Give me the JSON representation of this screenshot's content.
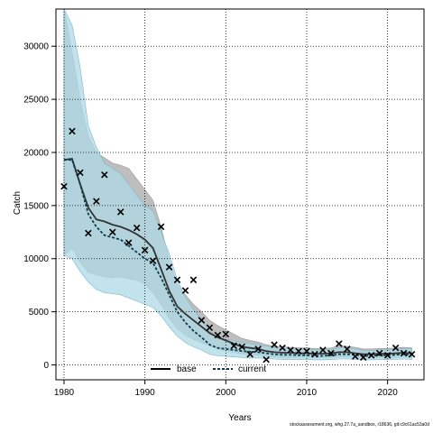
{
  "chart_data": {
    "type": "line",
    "xlabel": "Years",
    "ylabel": "Catch",
    "xlim": [
      1979,
      2024.5
    ],
    "ylim": [
      -1400,
      33500
    ],
    "x_ticks": [
      1980,
      1990,
      2000,
      2010,
      2020
    ],
    "y_ticks": [
      0,
      5000,
      10000,
      15000,
      20000,
      25000,
      30000
    ],
    "grid": true,
    "legend_position": "bottom-center",
    "colors": {
      "base_line": "#333333",
      "base_band": "#b3b3b3",
      "current_line": "#0b3d4f",
      "current_band": "#add8e6"
    },
    "years": [
      1980,
      1981,
      1982,
      1983,
      1984,
      1985,
      1986,
      1987,
      1988,
      1989,
      1990,
      1991,
      1992,
      1993,
      1994,
      1995,
      1996,
      1997,
      1998,
      1999,
      2000,
      2001,
      2002,
      2003,
      2004,
      2005,
      2006,
      2007,
      2008,
      2009,
      2010,
      2011,
      2012,
      2013,
      2014,
      2015,
      2016,
      2017,
      2018,
      2019,
      2020,
      2021,
      2022,
      2023
    ],
    "series": [
      {
        "name": "base",
        "style": "solid",
        "values": [
          19300,
          19400,
          17000,
          14800,
          13700,
          13500,
          13200,
          13000,
          12700,
          12300,
          11800,
          11000,
          9000,
          7000,
          5500,
          4800,
          4200,
          3600,
          3000,
          2600,
          2300,
          2000,
          1700,
          1600,
          1500,
          1300,
          1200,
          1150,
          1150,
          1100,
          1100,
          1050,
          1050,
          1100,
          1200,
          1200,
          1100,
          1000,
          1000,
          1050,
          1050,
          1100,
          1150,
          1100
        ],
        "lower": [
          10300,
          11000,
          9700,
          8700,
          8500,
          8300,
          8200,
          8300,
          8100,
          8000,
          7600,
          6800,
          5700,
          4400,
          3400,
          2800,
          2400,
          2100,
          1800,
          1500,
          1300,
          1200,
          1000,
          950,
          900,
          800,
          750,
          700,
          700,
          700,
          700,
          700,
          700,
          700,
          750,
          750,
          700,
          650,
          650,
          700,
          700,
          700,
          750,
          700
        ],
        "upper": [
          33500,
          29500,
          25000,
          21500,
          20000,
          19500,
          19000,
          18800,
          18500,
          17500,
          16500,
          15500,
          13000,
          9800,
          7600,
          6600,
          5700,
          5000,
          4200,
          3700,
          3300,
          2900,
          2500,
          2300,
          2150,
          1900,
          1750,
          1700,
          1650,
          1600,
          1600,
          1550,
          1550,
          1600,
          1800,
          1750,
          1650,
          1500,
          1500,
          1550,
          1550,
          1600,
          1650,
          1600
        ]
      },
      {
        "name": "current",
        "style": "dashed",
        "values": [
          19300,
          19300,
          17000,
          14200,
          13000,
          12200,
          12000,
          11800,
          11200,
          10600,
          10000,
          9600,
          8200,
          6600,
          5000,
          4000,
          3200,
          2600,
          1900,
          1600,
          1500,
          1400,
          1300,
          1250,
          1200,
          1100,
          1000,
          950,
          950,
          900,
          900,
          850,
          850,
          900,
          1000,
          1000,
          950,
          850,
          850,
          900,
          900,
          950,
          1000,
          950
        ],
        "lower": [
          10300,
          10000,
          8800,
          7800,
          7100,
          6800,
          6700,
          6600,
          6300,
          6000,
          5700,
          5400,
          4600,
          3600,
          2700,
          2100,
          1700,
          1400,
          1000,
          850,
          800,
          750,
          700,
          650,
          650,
          600,
          550,
          500,
          500,
          500,
          500,
          480,
          480,
          500,
          550,
          550,
          520,
          470,
          470,
          500,
          500,
          520,
          550,
          520
        ],
        "upper": [
          33500,
          32000,
          28000,
          22500,
          20500,
          19000,
          18500,
          18000,
          17000,
          16000,
          15000,
          14500,
          12500,
          10500,
          8000,
          6400,
          5200,
          4200,
          3100,
          2600,
          2400,
          2300,
          2100,
          2000,
          1900,
          1750,
          1600,
          1550,
          1500,
          1450,
          1450,
          1400,
          1400,
          1450,
          1600,
          1600,
          1500,
          1350,
          1350,
          1400,
          1400,
          1500,
          1550,
          1500
        ]
      }
    ],
    "observed_catch": [
      {
        "x": 1980,
        "y": 16800
      },
      {
        "x": 1981,
        "y": 22000
      },
      {
        "x": 1982,
        "y": 18100
      },
      {
        "x": 1983,
        "y": 12400
      },
      {
        "x": 1984,
        "y": 15400
      },
      {
        "x": 1985,
        "y": 17900
      },
      {
        "x": 1986,
        "y": 12500
      },
      {
        "x": 1987,
        "y": 14400
      },
      {
        "x": 1988,
        "y": 11500
      },
      {
        "x": 1989,
        "y": 12900
      },
      {
        "x": 1990,
        "y": 10800
      },
      {
        "x": 1991,
        "y": 9800
      },
      {
        "x": 1992,
        "y": 13000
      },
      {
        "x": 1993,
        "y": 9200
      },
      {
        "x": 1994,
        "y": 8000
      },
      {
        "x": 1995,
        "y": 7000
      },
      {
        "x": 1996,
        "y": 8000
      },
      {
        "x": 1997,
        "y": 4200
      },
      {
        "x": 1998,
        "y": 3500
      },
      {
        "x": 1999,
        "y": 2800
      },
      {
        "x": 2000,
        "y": 2900
      },
      {
        "x": 2001,
        "y": 1800
      },
      {
        "x": 2002,
        "y": 1700
      },
      {
        "x": 2003,
        "y": 1000
      },
      {
        "x": 2004,
        "y": 1500
      },
      {
        "x": 2005,
        "y": 500
      },
      {
        "x": 2006,
        "y": 1900
      },
      {
        "x": 2007,
        "y": 1600
      },
      {
        "x": 2008,
        "y": 1400
      },
      {
        "x": 2009,
        "y": 1300
      },
      {
        "x": 2010,
        "y": 1300
      },
      {
        "x": 2011,
        "y": 1000
      },
      {
        "x": 2012,
        "y": 1400
      },
      {
        "x": 2013,
        "y": 1100
      },
      {
        "x": 2014,
        "y": 2000
      },
      {
        "x": 2015,
        "y": 1500
      },
      {
        "x": 2016,
        "y": 800
      },
      {
        "x": 2017,
        "y": 700
      },
      {
        "x": 2018,
        "y": 900
      },
      {
        "x": 2019,
        "y": 1100
      },
      {
        "x": 2020,
        "y": 900
      },
      {
        "x": 2021,
        "y": 1600
      },
      {
        "x": 2022,
        "y": 1100
      },
      {
        "x": 2023,
        "y": 1000
      }
    ]
  },
  "caption": "stockassessment.org, whg.27.7a_sandbox, r18636, git:c9c61ac53a0d"
}
